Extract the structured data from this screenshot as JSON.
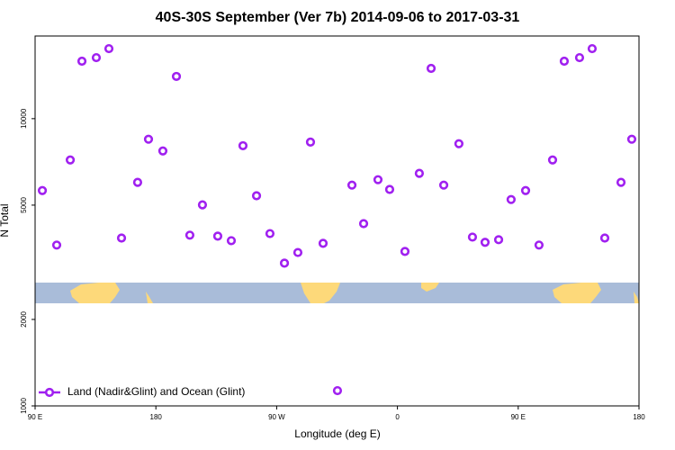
{
  "chart_data": {
    "type": "scatter",
    "title": "40S-30S September (Ver 7b)   2014-09-06 to 2017-03-31",
    "x_label": "Longitude (deg E)",
    "y_label": "N Total",
    "log_y": true,
    "legend": "bottom-left",
    "xlim": [
      90,
      540
    ],
    "ylim": [
      1000,
      19400
    ],
    "xticks": [
      {
        "value": 90,
        "label": "90 E"
      },
      180,
      {
        "value": 270,
        "label": "90 W"
      },
      {
        "value": 360,
        "label": "0"
      },
      {
        "value": 450,
        "label": "90 E"
      },
      {
        "value": 540,
        "label": "180"
      }
    ],
    "yticks": [
      1000,
      2000,
      5000,
      10000
    ],
    "series": [
      {
        "name": "Land (Nadir&Glint) and Ocean (Glint)",
        "color": "#a020f0",
        "x": [
          95.4,
          106.1,
          116.2,
          124.9,
          135.6,
          145.0,
          154.4,
          166.4,
          174.5,
          185.2,
          195.3,
          205.3,
          214.7,
          226.1,
          236.2,
          244.9,
          255.0,
          265.0,
          275.8,
          285.8,
          295.2,
          304.6,
          315.3,
          326.1,
          334.8,
          345.5,
          354.2,
          365.6,
          376.3,
          385.1,
          394.5,
          405.8,
          415.9,
          425.3,
          435.4,
          444.7,
          455.5,
          465.5,
          475.6,
          484.3,
          495.7,
          505.1,
          514.5,
          526.6,
          534.6
        ],
        "values": [
          5620,
          3630,
          7180,
          15850,
          16310,
          17530,
          3840,
          6000,
          8480,
          7720,
          14030,
          3930,
          5010,
          3900,
          3760,
          8050,
          5390,
          3980,
          3140,
          3420,
          8290,
          3680,
          1130,
          5870,
          4310,
          6130,
          5670,
          3450,
          6450,
          14960,
          5870,
          8180,
          3870,
          3710,
          3790,
          5230,
          5620,
          3630,
          7180,
          15850,
          16310,
          17530,
          3840,
          6000,
          8480
        ]
      }
    ]
  }
}
